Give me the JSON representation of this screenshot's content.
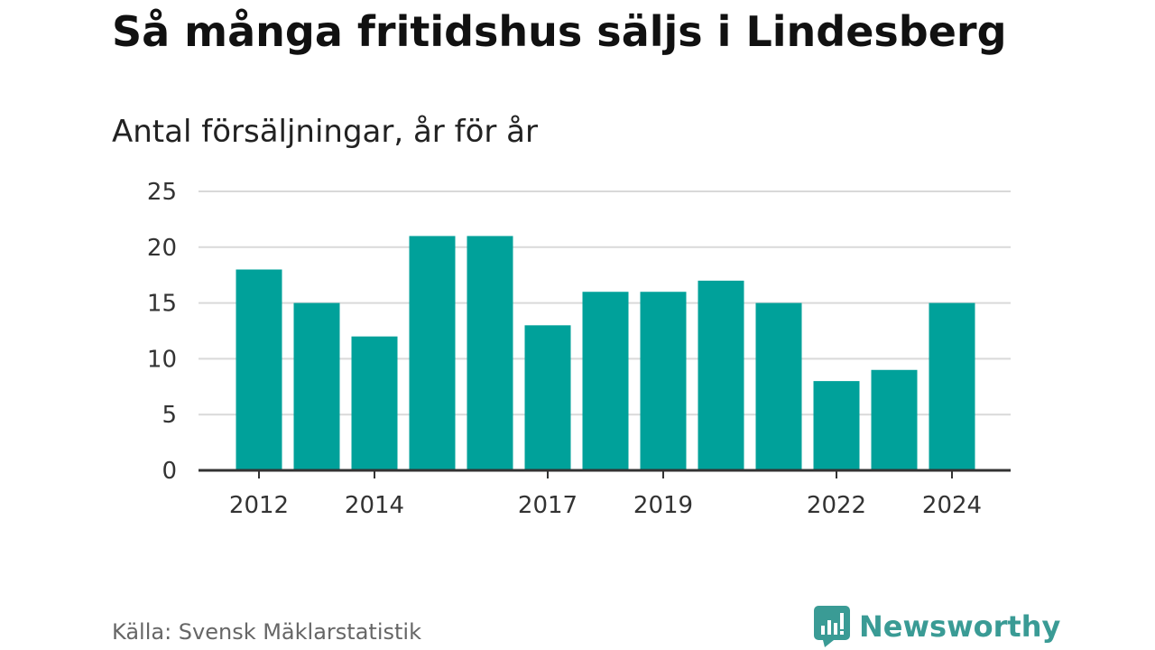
{
  "chart_data": {
    "type": "bar",
    "title": "Så många fritidshus säljs i Lindesberg",
    "subtitle": "Antal försäljningar, år för år",
    "categories": [
      "2012",
      "2013",
      "2014",
      "2015",
      "2016",
      "2017",
      "2018",
      "2019",
      "2020",
      "2021",
      "2022",
      "2023",
      "2024"
    ],
    "x_tick_labels": [
      "2012",
      "2014",
      "2017",
      "2019",
      "2022",
      "2024"
    ],
    "values": [
      18,
      15,
      12,
      21,
      21,
      13,
      16,
      16,
      17,
      15,
      8,
      9,
      15
    ],
    "ylim": [
      0,
      25
    ],
    "y_ticks": [
      0,
      5,
      10,
      15,
      20,
      25
    ],
    "grid": true,
    "legend": "none",
    "bar_color": "#00a19a"
  },
  "footer": {
    "source": "Källa: Svensk Mäklarstatistik",
    "brand": "Newsworthy",
    "brand_icon": "newsworthy-logo-icon",
    "brand_color": "#3a9b95"
  }
}
